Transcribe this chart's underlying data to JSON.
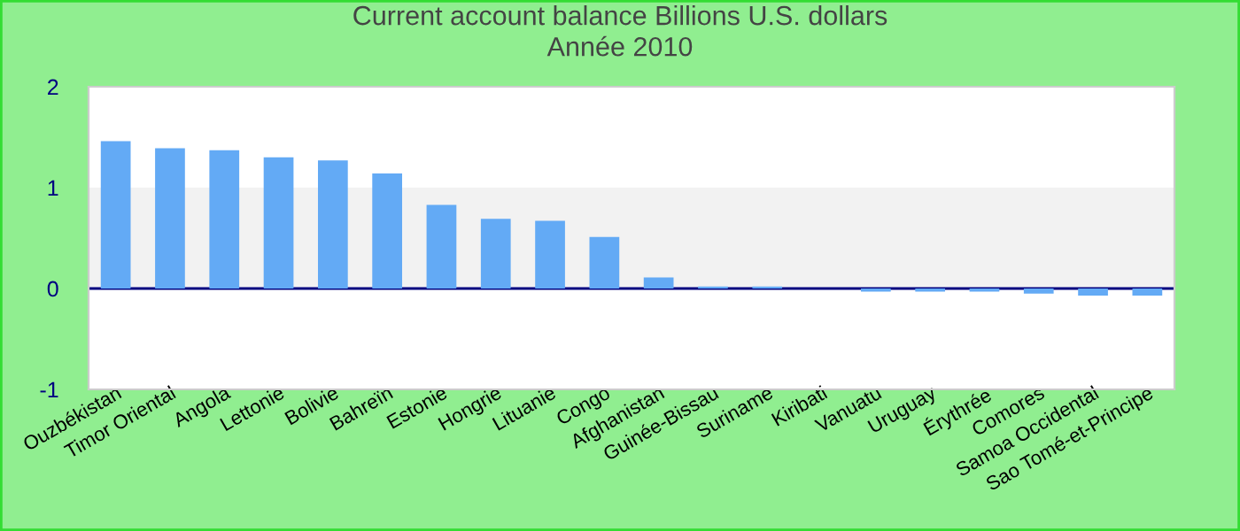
{
  "chart_data": {
    "type": "bar",
    "title": "Current account balance Billions U.S. dollars\nAnnée 2010",
    "categories": [
      "Ouzbékistan",
      "Timor Oriental",
      "Angola",
      "Lettonie",
      "Bolivie",
      "Bahreïn",
      "Estonie",
      "Hongrie",
      "Lituanie",
      "Congo",
      "Afghanistan",
      "Guinée-Bissau",
      "Suriname",
      "Kiribati",
      "Vanuatu",
      "Uruguay",
      "Érythrée",
      "Comores",
      "Samoa Occidental",
      "Sao Tomé-et-Principe"
    ],
    "values": [
      1.46,
      1.39,
      1.37,
      1.3,
      1.27,
      1.14,
      0.83,
      0.69,
      0.67,
      0.51,
      0.11,
      0.02,
      0.02,
      0,
      -0.03,
      -0.03,
      -0.03,
      -0.05,
      -0.07,
      -0.07
    ],
    "color": "#63aaf5",
    "ylim": [
      -1,
      2
    ],
    "yticks": [
      -1,
      0,
      1,
      2
    ],
    "bands": [
      {
        "axis": "y",
        "from": 0,
        "to": 1,
        "color": "#f2f2f2"
      }
    ],
    "ref_lines": [
      {
        "axis": "y",
        "value": 0,
        "color": "#000080"
      }
    ],
    "grid": false,
    "legend": false
  }
}
